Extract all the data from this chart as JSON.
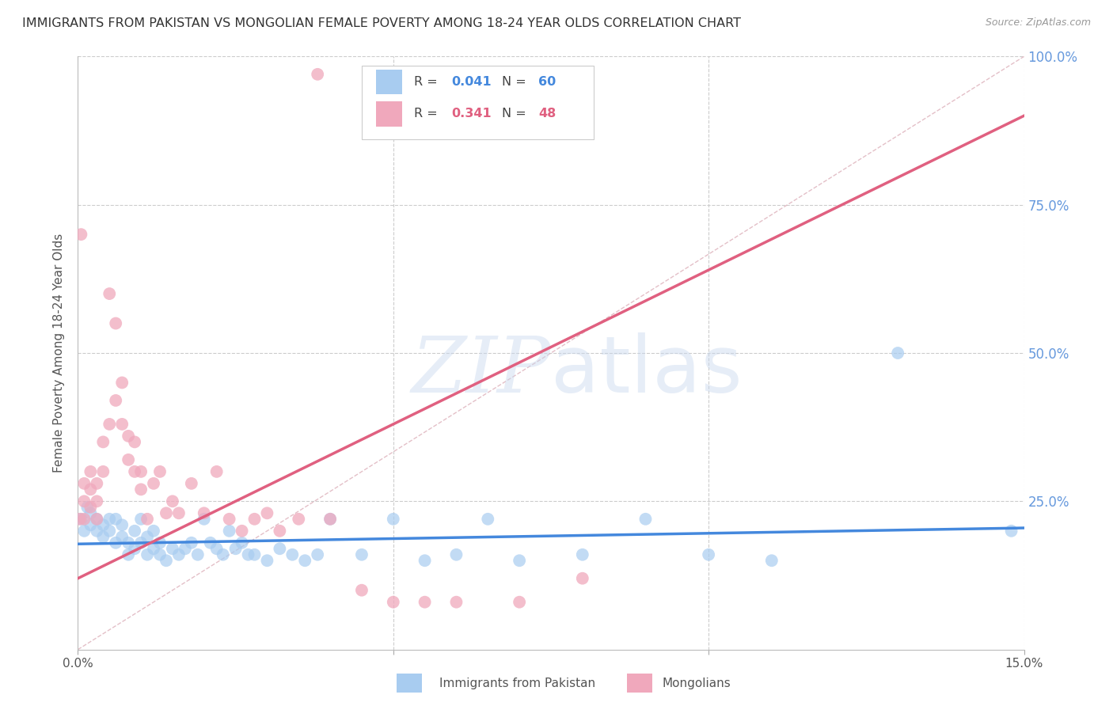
{
  "title": "IMMIGRANTS FROM PAKISTAN VS MONGOLIAN FEMALE POVERTY AMONG 18-24 YEAR OLDS CORRELATION CHART",
  "source": "Source: ZipAtlas.com",
  "ylabel": "Female Poverty Among 18-24 Year Olds",
  "xlim": [
    0.0,
    0.15
  ],
  "ylim": [
    0.0,
    1.0
  ],
  "legend_R1": "0.041",
  "legend_N1": "60",
  "legend_R2": "0.341",
  "legend_N2": "48",
  "color_blue": "#A8CCF0",
  "color_pink": "#F0A8BC",
  "color_blue_dark": "#4488DD",
  "color_pink_dark": "#E06080",
  "color_right_axis": "#6699DD",
  "watermark_zip": "ZIP",
  "watermark_atlas": "atlas",
  "blue_points_x": [
    0.0005,
    0.001,
    0.0015,
    0.002,
    0.002,
    0.003,
    0.003,
    0.004,
    0.004,
    0.005,
    0.005,
    0.006,
    0.006,
    0.007,
    0.007,
    0.008,
    0.008,
    0.009,
    0.009,
    0.01,
    0.01,
    0.011,
    0.011,
    0.012,
    0.012,
    0.013,
    0.013,
    0.014,
    0.015,
    0.016,
    0.017,
    0.018,
    0.019,
    0.02,
    0.021,
    0.022,
    0.023,
    0.024,
    0.025,
    0.026,
    0.027,
    0.028,
    0.03,
    0.032,
    0.034,
    0.036,
    0.038,
    0.04,
    0.045,
    0.05,
    0.055,
    0.06,
    0.065,
    0.07,
    0.08,
    0.09,
    0.1,
    0.11,
    0.13,
    0.148
  ],
  "blue_points_y": [
    0.22,
    0.2,
    0.24,
    0.21,
    0.23,
    0.2,
    0.22,
    0.21,
    0.19,
    0.22,
    0.2,
    0.18,
    0.22,
    0.19,
    0.21,
    0.16,
    0.18,
    0.17,
    0.2,
    0.18,
    0.22,
    0.16,
    0.19,
    0.17,
    0.2,
    0.18,
    0.16,
    0.15,
    0.17,
    0.16,
    0.17,
    0.18,
    0.16,
    0.22,
    0.18,
    0.17,
    0.16,
    0.2,
    0.17,
    0.18,
    0.16,
    0.16,
    0.15,
    0.17,
    0.16,
    0.15,
    0.16,
    0.22,
    0.16,
    0.22,
    0.15,
    0.16,
    0.22,
    0.15,
    0.16,
    0.22,
    0.16,
    0.15,
    0.5,
    0.2
  ],
  "pink_points_x": [
    0.0003,
    0.0005,
    0.001,
    0.001,
    0.001,
    0.002,
    0.002,
    0.002,
    0.003,
    0.003,
    0.003,
    0.004,
    0.004,
    0.005,
    0.005,
    0.006,
    0.006,
    0.007,
    0.007,
    0.008,
    0.008,
    0.009,
    0.009,
    0.01,
    0.01,
    0.011,
    0.012,
    0.013,
    0.014,
    0.015,
    0.016,
    0.018,
    0.02,
    0.022,
    0.024,
    0.026,
    0.028,
    0.03,
    0.032,
    0.035,
    0.038,
    0.04,
    0.045,
    0.05,
    0.055,
    0.06,
    0.07,
    0.08
  ],
  "pink_points_y": [
    0.22,
    0.7,
    0.22,
    0.25,
    0.28,
    0.24,
    0.27,
    0.3,
    0.22,
    0.25,
    0.28,
    0.3,
    0.35,
    0.38,
    0.6,
    0.55,
    0.42,
    0.45,
    0.38,
    0.32,
    0.36,
    0.3,
    0.35,
    0.27,
    0.3,
    0.22,
    0.28,
    0.3,
    0.23,
    0.25,
    0.23,
    0.28,
    0.23,
    0.3,
    0.22,
    0.2,
    0.22,
    0.23,
    0.2,
    0.22,
    0.97,
    0.22,
    0.1,
    0.08,
    0.08,
    0.08,
    0.08,
    0.12
  ],
  "blue_trend_x": [
    0.0,
    0.15
  ],
  "blue_trend_y": [
    0.178,
    0.205
  ],
  "pink_trend_x": [
    0.0,
    0.15
  ],
  "pink_trend_y": [
    0.12,
    0.9
  ],
  "diag_line_x": [
    0.0,
    0.15
  ],
  "diag_line_y": [
    0.0,
    1.0
  ]
}
